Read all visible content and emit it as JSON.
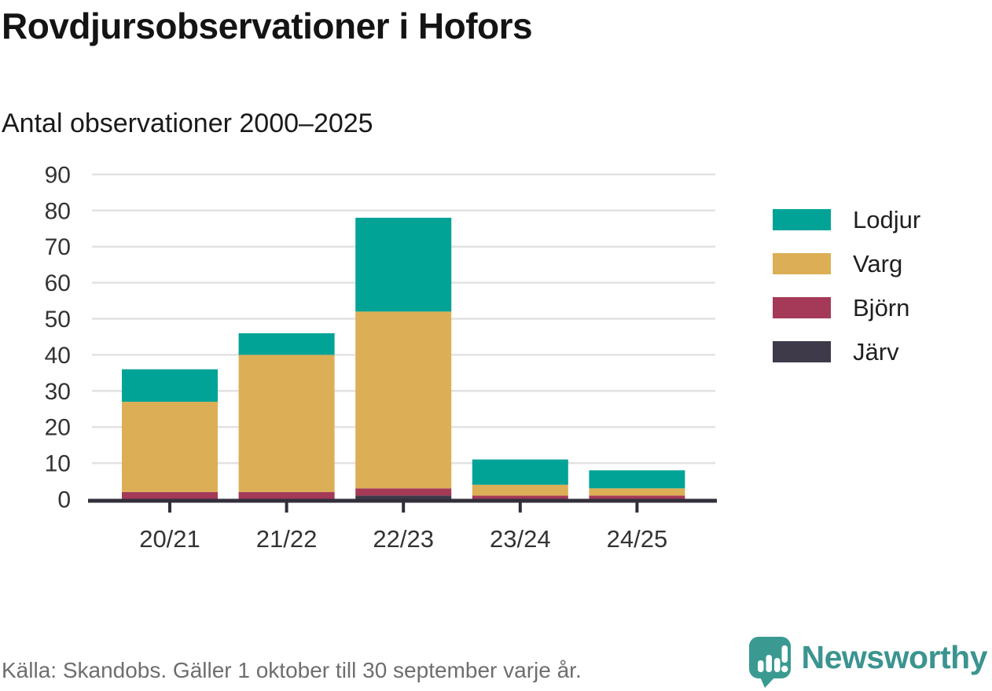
{
  "header": {
    "title": "Rovdjursobservationer i Hofors",
    "subtitle": "Antal observationer 2000–2025"
  },
  "chart_data": {
    "type": "bar",
    "stacked": true,
    "title": "Rovdjursobservationer i Hofors",
    "subtitle": "Antal observationer 2000–2025",
    "categories": [
      "20/21",
      "21/22",
      "22/23",
      "23/24",
      "24/25"
    ],
    "series": [
      {
        "name": "Järv",
        "color": "#3e3a4a",
        "values": [
          0,
          0,
          1,
          0,
          0
        ]
      },
      {
        "name": "Björn",
        "color": "#a53a58",
        "values": [
          2,
          2,
          2,
          1,
          1
        ]
      },
      {
        "name": "Varg",
        "color": "#dcaf56",
        "values": [
          25,
          38,
          49,
          3,
          2
        ]
      },
      {
        "name": "Lodjur",
        "color": "#00a396",
        "values": [
          9,
          6,
          26,
          7,
          5
        ]
      }
    ],
    "totals": [
      36,
      46,
      78,
      11,
      8
    ],
    "legend_order": [
      "Lodjur",
      "Varg",
      "Björn",
      "Järv"
    ],
    "legend_position": "right",
    "xlabel": "",
    "ylabel": "",
    "ylim": [
      0,
      90
    ],
    "yticks": [
      0,
      10,
      20,
      30,
      40,
      50,
      60,
      70,
      80,
      90
    ],
    "grid": true
  },
  "colors": {
    "gridline": "#e2e2e2",
    "axis": "#322f3b",
    "tick_label": "#333333",
    "brand_teal": "#3b948f",
    "logo_teal": "#3a9a92"
  },
  "footer": {
    "source": "Källa: Skandobs. Gäller 1 oktober till 30 september varje år.",
    "brand": "Newsworthy"
  }
}
